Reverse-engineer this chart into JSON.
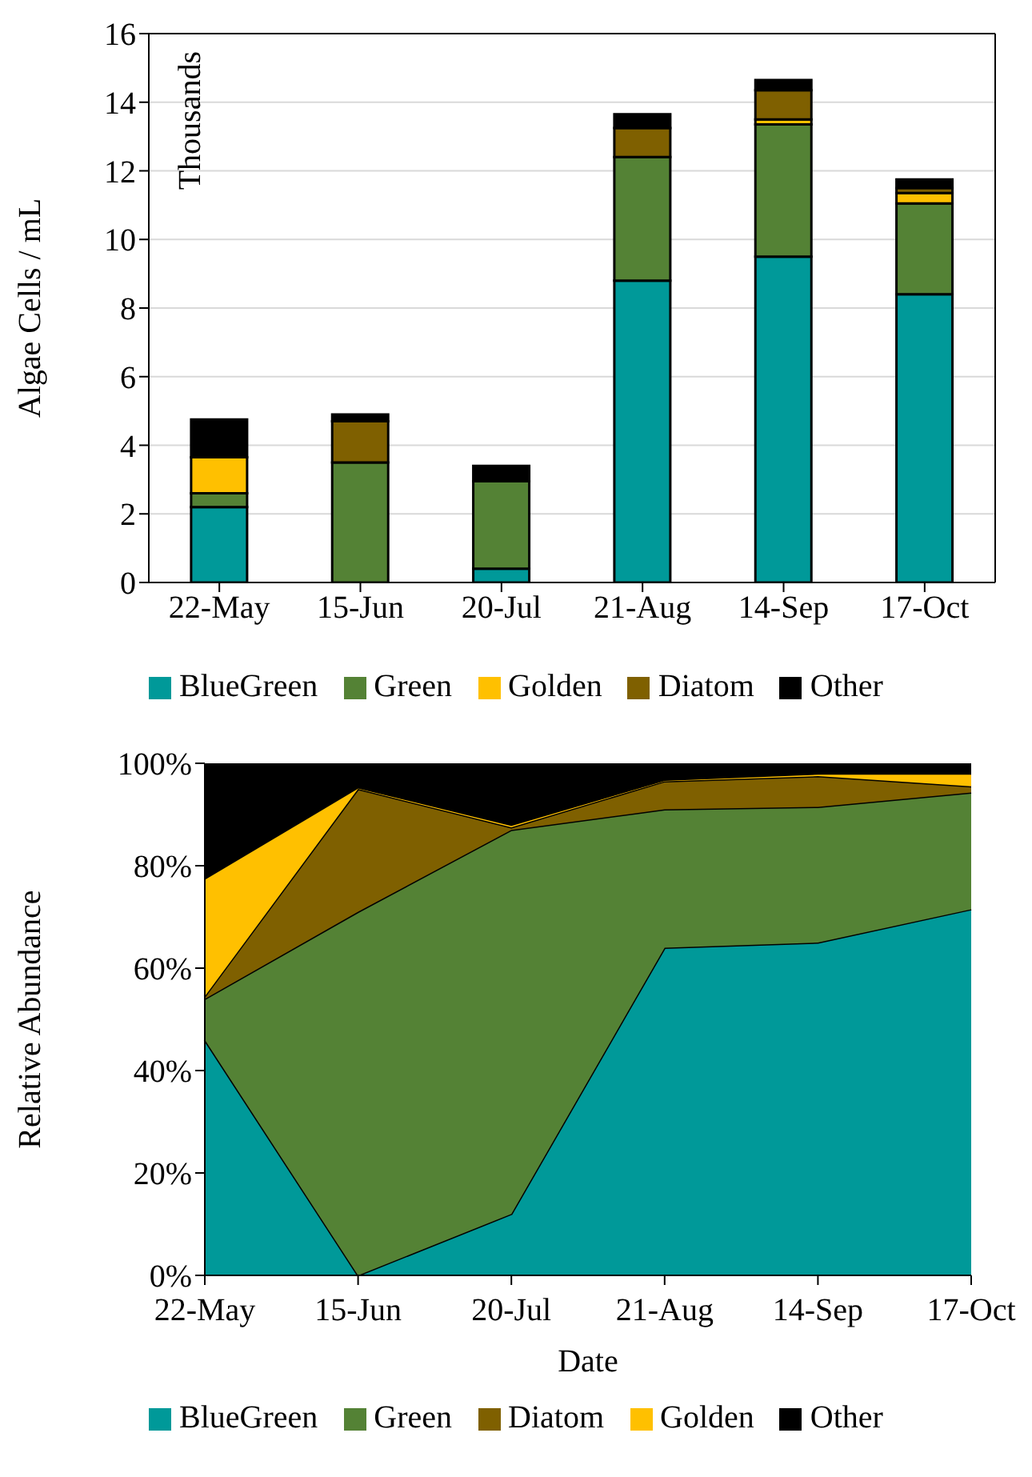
{
  "chart_data": [
    {
      "type": "bar",
      "ylabel": "Algae Cells / mL",
      "annotations": [
        "Thousands"
      ],
      "categories": [
        "22-May",
        "15-Jun",
        "20-Jul",
        "21-Aug",
        "14-Sep",
        "17-Oct"
      ],
      "stacked": true,
      "series": [
        {
          "name": "BlueGreen",
          "color": "#009999",
          "values": [
            2.2,
            0,
            0.4,
            8.8,
            9.5,
            8.4
          ]
        },
        {
          "name": "Green",
          "color": "#548235",
          "values": [
            0.4,
            3.5,
            2.55,
            3.6,
            3.85,
            2.65
          ]
        },
        {
          "name": "Golden",
          "color": "#ffc000",
          "values": [
            1.05,
            0,
            null,
            null,
            0.15,
            0.3
          ]
        },
        {
          "name": "Diatom",
          "color": "#7f6000",
          "values": [
            0,
            1.2,
            null,
            0.85,
            0.85,
            0.15
          ]
        },
        {
          "name": "Other",
          "color": "#000000",
          "values": [
            1.1,
            0.2,
            0.45,
            0.4,
            0.3,
            0.25
          ]
        }
      ],
      "ylim": [
        0,
        16
      ],
      "yticks": [
        0,
        2,
        4,
        6,
        8,
        10,
        12,
        14,
        16
      ],
      "grid": "y",
      "legend": "bottom"
    },
    {
      "type": "area",
      "xlabel": "Date",
      "ylabel": "Relative Abundance",
      "categories": [
        "22-May",
        "15-Jun",
        "20-Jul",
        "21-Aug",
        "14-Sep",
        "17-Oct"
      ],
      "stacked": true,
      "series": [
        {
          "name": "BlueGreen",
          "color": "#009999",
          "values": [
            46,
            0,
            12,
            64,
            65,
            71.5
          ]
        },
        {
          "name": "Green",
          "color": "#548235",
          "values": [
            8,
            71,
            75,
            27,
            26.5,
            22.8
          ]
        },
        {
          "name": "Diatom",
          "color": "#7f6000",
          "values": [
            0.5,
            24,
            0.5,
            5.5,
            6,
            1.2
          ]
        },
        {
          "name": "Golden",
          "color": "#ffc000",
          "values": [
            23,
            0.3,
            0.5,
            0.3,
            0.5,
            2.5
          ]
        },
        {
          "name": "Other",
          "color": "#000000",
          "values": [
            22.5,
            4.7,
            12,
            3.2,
            2,
            2
          ]
        }
      ],
      "ylim": [
        0,
        100
      ],
      "yticks": [
        {
          "value": 0,
          "label": "0%"
        },
        {
          "value": 20,
          "label": "20%"
        },
        {
          "value": 40,
          "label": "40%"
        },
        {
          "value": 60,
          "label": "60%"
        },
        {
          "value": 80,
          "label": "80%"
        },
        {
          "value": 100,
          "label": "100%"
        }
      ],
      "legend": "bottom"
    }
  ]
}
